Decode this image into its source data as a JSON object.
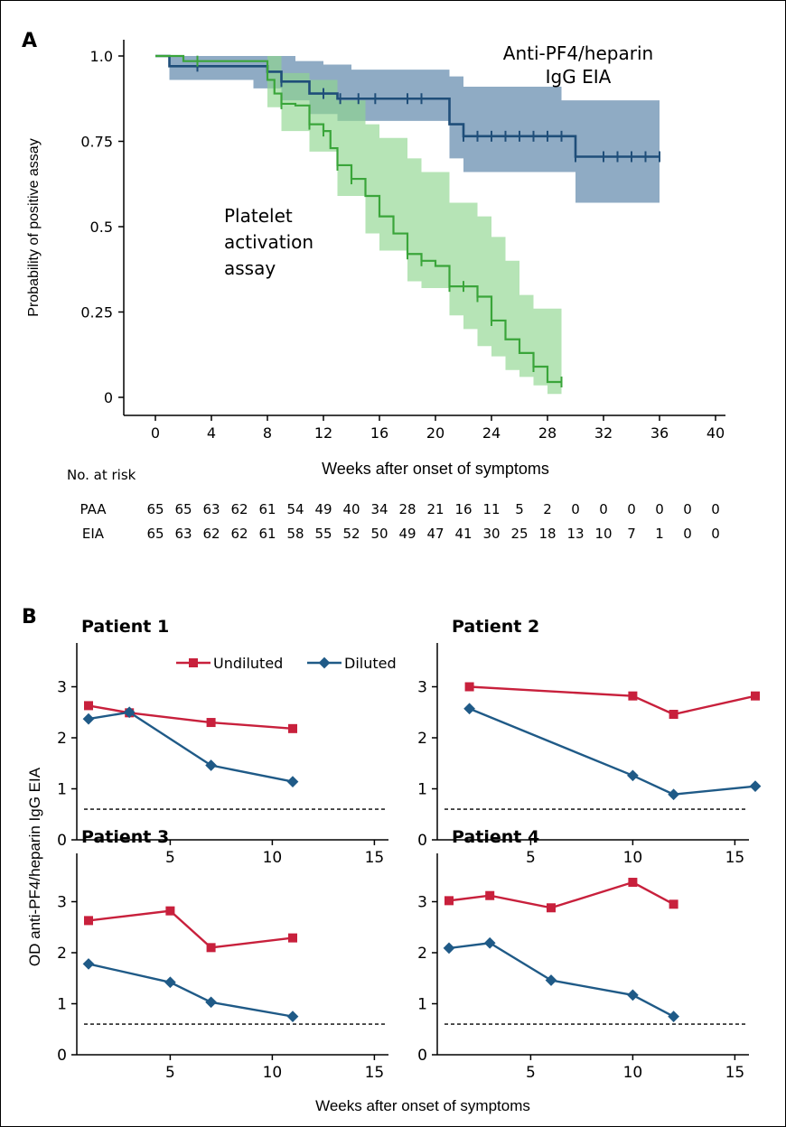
{
  "panel_a": {
    "label": "A",
    "ylabel": "Probability of positive assay",
    "xlabel": "Weeks after onset of symptoms",
    "annotation_eia": [
      "Anti-PF4/heparin",
      "IgG EIA"
    ],
    "annotation_paa": [
      "Platelet",
      "activation",
      "assay"
    ],
    "risk_title": "No. at risk",
    "risk_rows": [
      {
        "label": "PAA",
        "values": [
          "65",
          "65",
          "63",
          "62",
          "61",
          "54",
          "49",
          "40",
          "34",
          "28",
          "21",
          "16",
          "11",
          "5",
          "2",
          "0",
          "0",
          "0",
          "0",
          "0",
          "0"
        ]
      },
      {
        "label": "EIA",
        "values": [
          "65",
          "63",
          "62",
          "62",
          "61",
          "58",
          "55",
          "52",
          "50",
          "49",
          "47",
          "41",
          "30",
          "25",
          "18",
          "13",
          "10",
          "7",
          "1",
          "0",
          "0"
        ]
      }
    ]
  },
  "panel_b": {
    "label": "B",
    "ylabel": "OD anti-PF4/heparin IgG EIA",
    "xlabel": "Weeks after onset of symptoms",
    "legend": [
      "Undiluted",
      "Diluted"
    ]
  },
  "colors": {
    "eia_line": "#1f4e79",
    "eia_band": "#6f94b3",
    "paa_line": "#3aa53a",
    "paa_band": "#8fd68f",
    "undiluted": "#c8203c",
    "diluted": "#1f5a87"
  },
  "chart_data": [
    {
      "type": "line",
      "subtype": "kaplan-meier step",
      "title": "",
      "xlabel": "Weeks after onset of symptoms",
      "ylabel": "Probability of positive assay",
      "xlim": [
        -1,
        42
      ],
      "ylim": [
        -0.05,
        1.05
      ],
      "xticks": [
        0,
        4,
        8,
        12,
        16,
        20,
        24,
        28,
        32,
        36,
        40
      ],
      "yticks": [
        0,
        0.25,
        0.5,
        0.75,
        1.0
      ],
      "ytick_labels": [
        "0",
        "0.25",
        "0.5",
        "0.75",
        "1.0"
      ],
      "series": [
        {
          "name": "Anti-PF4/heparin IgG EIA",
          "steps": [
            [
              0,
              1.0
            ],
            [
              1,
              0.97
            ],
            [
              8,
              0.954
            ],
            [
              9,
              0.925
            ],
            [
              11,
              0.89
            ],
            [
              13,
              0.875
            ],
            [
              21,
              0.8
            ],
            [
              22,
              0.765
            ],
            [
              30,
              0.705
            ],
            [
              36,
              0.705
            ]
          ],
          "ci_upper": [
            [
              0,
              1.0
            ],
            [
              4,
              1.0
            ],
            [
              8,
              1.0
            ],
            [
              10,
              0.985
            ],
            [
              12,
              0.975
            ],
            [
              14,
              0.96
            ],
            [
              21,
              0.94
            ],
            [
              22,
              0.91
            ],
            [
              29,
              0.87
            ],
            [
              36,
              0.87
            ]
          ],
          "ci_lower": [
            [
              0,
              1.0
            ],
            [
              1,
              0.93
            ],
            [
              7,
              0.905
            ],
            [
              9,
              0.87
            ],
            [
              11,
              0.83
            ],
            [
              13,
              0.81
            ],
            [
              21,
              0.7
            ],
            [
              22,
              0.66
            ],
            [
              30,
              0.57
            ],
            [
              36,
              0.57
            ]
          ],
          "censor_x": [
            3,
            9,
            12,
            13.2,
            14.5,
            15.7,
            18,
            19,
            22,
            23,
            24,
            25,
            26,
            27,
            28,
            29,
            30,
            32,
            33,
            34,
            35,
            36
          ]
        },
        {
          "name": "Platelet activation assay",
          "steps": [
            [
              0,
              1.0
            ],
            [
              2,
              0.985
            ],
            [
              8,
              0.93
            ],
            [
              8.5,
              0.89
            ],
            [
              9,
              0.86
            ],
            [
              10,
              0.855
            ],
            [
              11,
              0.8
            ],
            [
              12,
              0.78
            ],
            [
              12.5,
              0.73
            ],
            [
              13,
              0.68
            ],
            [
              14,
              0.64
            ],
            [
              15,
              0.59
            ],
            [
              16,
              0.53
            ],
            [
              17,
              0.48
            ],
            [
              18,
              0.42
            ],
            [
              19,
              0.4
            ],
            [
              20,
              0.385
            ],
            [
              21,
              0.325
            ],
            [
              23,
              0.295
            ],
            [
              24,
              0.225
            ],
            [
              25,
              0.17
            ],
            [
              26,
              0.13
            ],
            [
              27,
              0.09
            ],
            [
              28,
              0.045
            ],
            [
              29,
              0.045
            ]
          ],
          "ci_upper": [
            [
              0,
              1.0
            ],
            [
              8,
              1.0
            ],
            [
              9,
              0.95
            ],
            [
              11,
              0.93
            ],
            [
              13,
              0.87
            ],
            [
              15,
              0.8
            ],
            [
              16,
              0.76
            ],
            [
              18,
              0.7
            ],
            [
              19,
              0.66
            ],
            [
              21,
              0.57
            ],
            [
              23,
              0.53
            ],
            [
              24,
              0.47
            ],
            [
              25,
              0.4
            ],
            [
              26,
              0.3
            ],
            [
              27,
              0.26
            ],
            [
              29,
              0.26
            ]
          ],
          "ci_lower": [
            [
              0,
              1.0
            ],
            [
              8,
              0.85
            ],
            [
              9,
              0.78
            ],
            [
              11,
              0.72
            ],
            [
              13,
              0.59
            ],
            [
              15,
              0.48
            ],
            [
              16,
              0.43
            ],
            [
              18,
              0.34
            ],
            [
              19,
              0.32
            ],
            [
              21,
              0.24
            ],
            [
              22,
              0.2
            ],
            [
              23,
              0.15
            ],
            [
              24,
              0.12
            ],
            [
              25,
              0.08
            ],
            [
              26,
              0.06
            ],
            [
              27,
              0.035
            ],
            [
              28,
              0.01
            ],
            [
              29,
              0.01
            ]
          ],
          "censor_x": [
            3,
            9,
            11,
            12,
            13,
            14,
            18,
            19,
            21,
            22,
            23,
            24,
            27,
            29
          ]
        }
      ]
    },
    {
      "type": "line",
      "title": "Patient 1",
      "xlim": [
        0.5,
        16.5
      ],
      "ylim": [
        0,
        3.5
      ],
      "xticks": [
        5,
        10,
        15
      ],
      "yticks": [
        0,
        1,
        2,
        3
      ],
      "threshold": 0.6,
      "series": [
        {
          "name": "Undiluted",
          "x": [
            1,
            3,
            7,
            11
          ],
          "values": [
            2.63,
            2.49,
            2.3,
            2.18
          ]
        },
        {
          "name": "Diluted",
          "x": [
            1,
            3,
            7,
            11
          ],
          "values": [
            2.37,
            2.5,
            1.46,
            1.14
          ]
        }
      ]
    },
    {
      "type": "line",
      "title": "Patient 2",
      "xlim": [
        0.5,
        16.5
      ],
      "ylim": [
        0,
        3.5
      ],
      "xticks": [
        5,
        10,
        15
      ],
      "yticks": [
        0,
        1,
        2,
        3
      ],
      "threshold": 0.6,
      "series": [
        {
          "name": "Undiluted",
          "x": [
            2,
            10,
            12,
            16
          ],
          "values": [
            3.0,
            2.82,
            2.46,
            2.82
          ]
        },
        {
          "name": "Diluted",
          "x": [
            2,
            10,
            12,
            16
          ],
          "values": [
            2.57,
            1.26,
            0.89,
            1.05
          ]
        }
      ]
    },
    {
      "type": "line",
      "title": "Patient 3",
      "xlim": [
        0.5,
        16.5
      ],
      "ylim": [
        0,
        3.5
      ],
      "xticks": [
        5,
        10,
        15
      ],
      "yticks": [
        0,
        1,
        2,
        3
      ],
      "threshold": 0.6,
      "series": [
        {
          "name": "Undiluted",
          "x": [
            1,
            5,
            7,
            11
          ],
          "values": [
            2.63,
            2.82,
            2.1,
            2.29
          ]
        },
        {
          "name": "Diluted",
          "x": [
            1,
            5,
            7,
            11
          ],
          "values": [
            1.78,
            1.42,
            1.03,
            0.75
          ]
        }
      ]
    },
    {
      "type": "line",
      "title": "Patient 4",
      "xlim": [
        0.5,
        16.5
      ],
      "ylim": [
        0,
        3.5
      ],
      "xticks": [
        5,
        10,
        15
      ],
      "yticks": [
        0,
        1,
        2,
        3
      ],
      "threshold": 0.6,
      "series": [
        {
          "name": "Undiluted",
          "x": [
            1,
            3,
            6,
            10,
            12
          ],
          "values": [
            3.02,
            3.12,
            2.88,
            3.38,
            2.95
          ]
        },
        {
          "name": "Diluted",
          "x": [
            1,
            3,
            6,
            10,
            12
          ],
          "values": [
            2.09,
            2.19,
            1.46,
            1.17,
            0.75
          ]
        }
      ]
    }
  ]
}
